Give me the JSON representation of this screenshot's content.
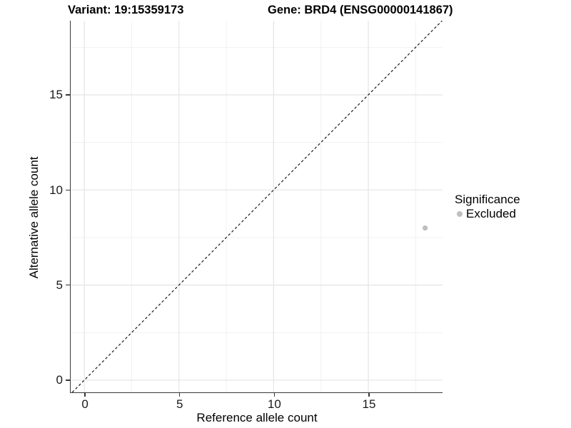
{
  "chart_data": {
    "type": "scatter",
    "title_left": "Variant: 19:15359173",
    "title_right": "Gene: BRD4 (ENSG00000141867)",
    "xlabel": "Reference allele count",
    "ylabel": "Alternative allele count",
    "xlim": [
      -0.72,
      18.92
    ],
    "ylim": [
      -0.64,
      18.9
    ],
    "x_ticks": [
      0,
      5,
      10,
      15
    ],
    "y_ticks": [
      0,
      5,
      10,
      15
    ],
    "x_minor_ticks": [
      2.5,
      7.5,
      12.5,
      17.5
    ],
    "y_minor_ticks": [
      2.5,
      7.5,
      12.5,
      17.5
    ],
    "grid": true,
    "points": [
      {
        "x": 18,
        "y": 8,
        "significance": "Excluded",
        "color": "#bebebe"
      }
    ],
    "identity_line": {
      "slope": 1,
      "intercept": 0,
      "style": "dashed",
      "color": "#1c1c1c"
    },
    "legend": {
      "title": "Significance",
      "position": "right",
      "items": [
        {
          "label": "Excluded",
          "color": "#bebebe"
        }
      ]
    },
    "colors": {
      "axis_line": "#383838",
      "major_grid": "#e4e4e4",
      "minor_grid": "#f1f1f1",
      "background": "#ffffff"
    }
  }
}
